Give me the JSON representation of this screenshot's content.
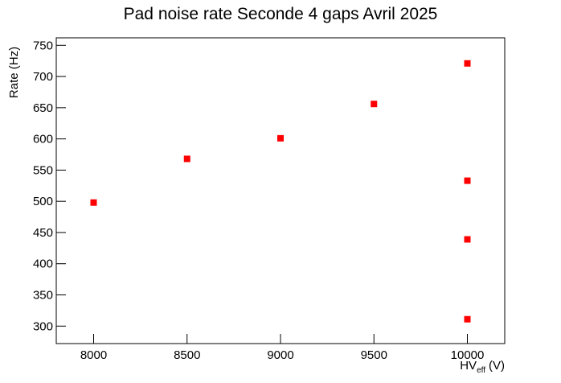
{
  "chart_data": {
    "type": "scatter",
    "title": "Pad noise rate Seconde 4 gaps Avril 2025",
    "xlabel": {
      "main": "HV",
      "sub": "eff",
      "unit": "(V)"
    },
    "ylabel": "Rate (Hz)",
    "series": [
      {
        "name": "Pad noise rate",
        "color": "#ff0000",
        "x": [
          8000,
          8500,
          9000,
          9500,
          10000,
          10000,
          10000,
          10000
        ],
        "values": [
          498,
          568,
          601,
          656,
          721,
          533,
          439,
          311
        ]
      }
    ],
    "xlim": [
      7800,
      10200
    ],
    "xticks": [
      8000,
      8500,
      9000,
      9500,
      10000
    ],
    "ylim": [
      272,
      762
    ],
    "yticks": [
      300,
      350,
      400,
      450,
      500,
      550,
      600,
      650,
      700,
      750
    ]
  }
}
